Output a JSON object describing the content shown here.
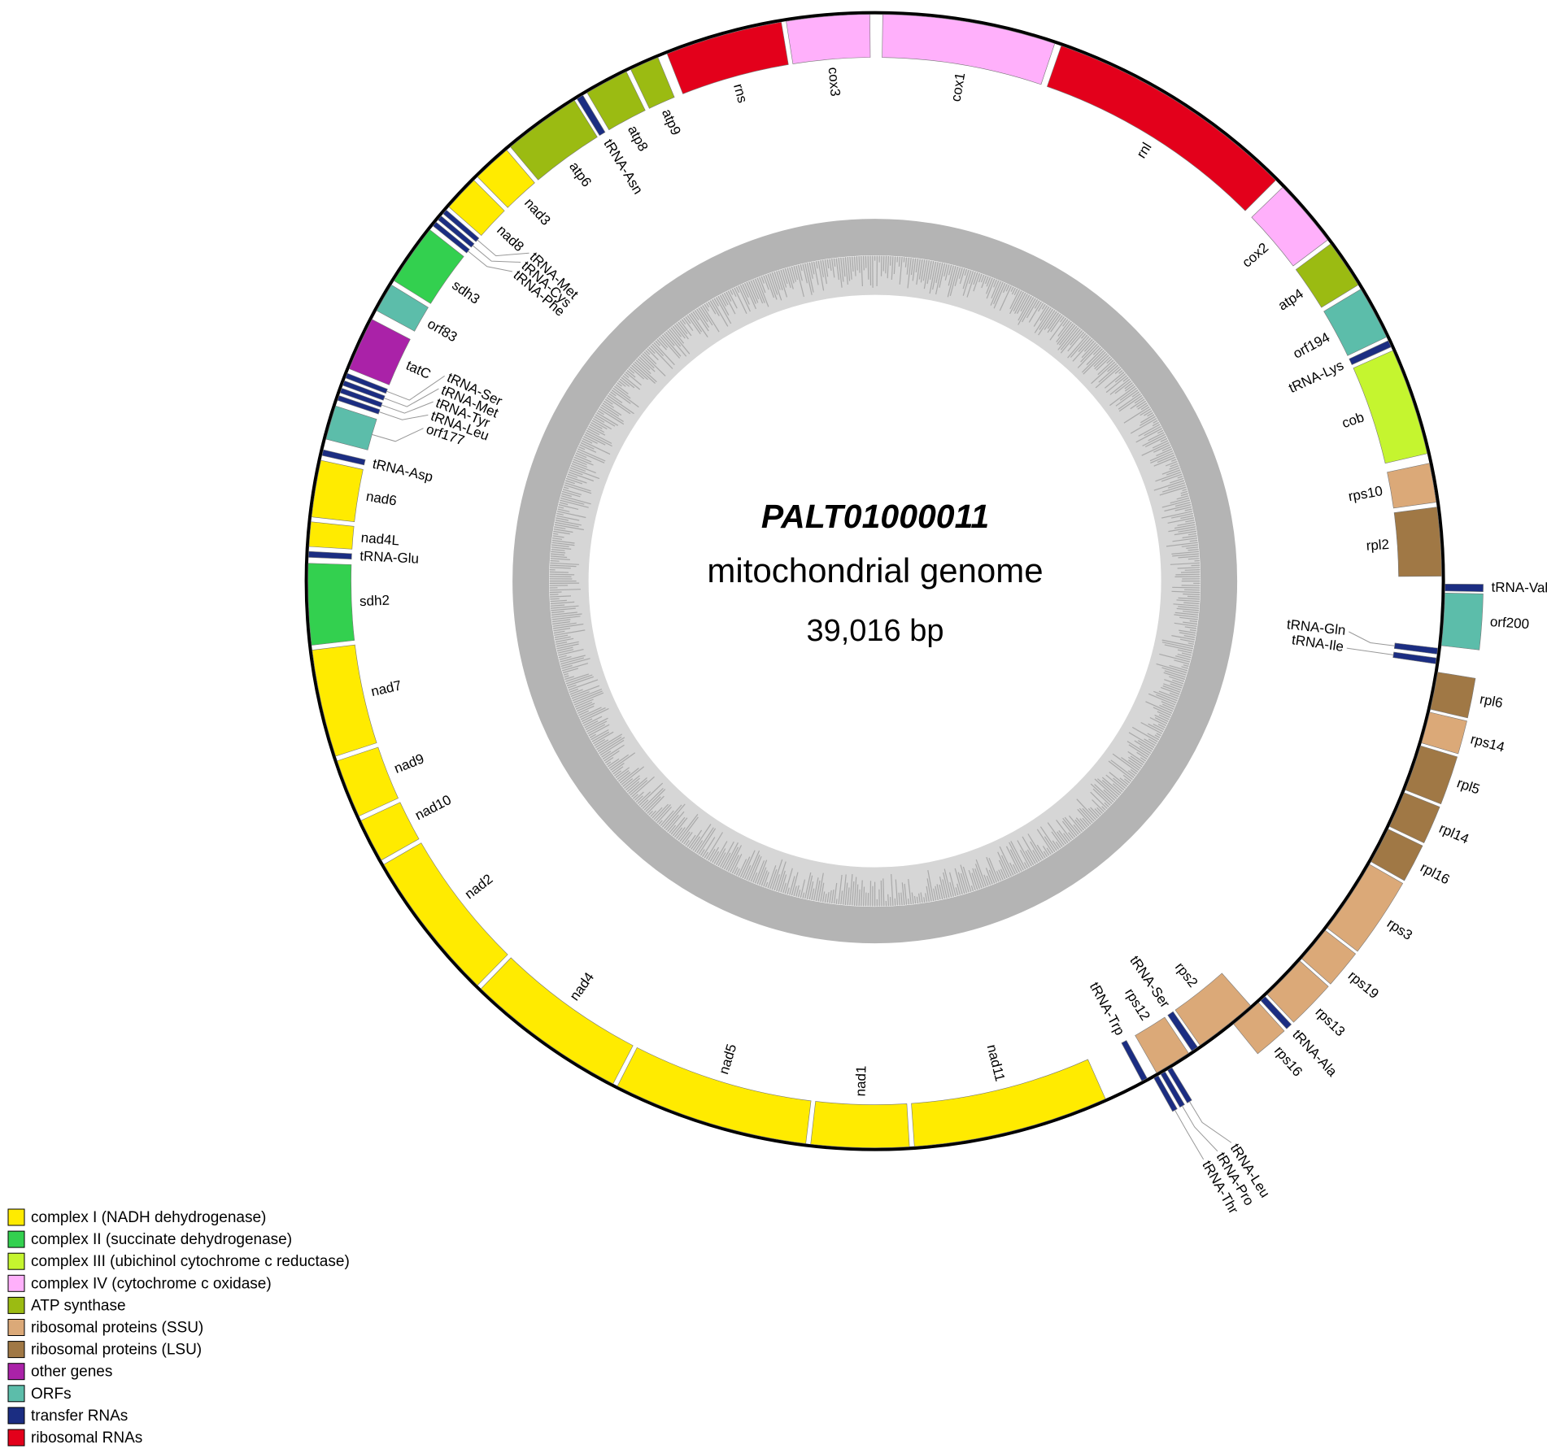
{
  "title": "PALT01000011",
  "subtitle": "mitochondrial genome",
  "length": "39,016 bp",
  "legend": [
    {
      "label": "complex I (NADH dehydrogenase)",
      "color": "#ffeb00"
    },
    {
      "label": "complex II (succinate dehydrogenase)",
      "color": "#33d04f"
    },
    {
      "label": "complex III (ubichinol cytochrome c reductase)",
      "color": "#c5f52f"
    },
    {
      "label": "complex IV (cytochrome c oxidase)",
      "color": "#ffb0fb"
    },
    {
      "label": "ATP synthase",
      "color": "#9bbb12"
    },
    {
      "label": "ribosomal proteins (SSU)",
      "color": "#dba978"
    },
    {
      "label": "ribosomal proteins (LSU)",
      "color": "#a07845"
    },
    {
      "label": "other genes",
      "color": "#aa22a8"
    },
    {
      "label": "ORFs",
      "color": "#5cbdaa"
    },
    {
      "label": "transfer RNAs",
      "color": "#1b2d82"
    },
    {
      "label": "ribosomal RNAs",
      "color": "#e3001b"
    }
  ],
  "genes": [
    {
      "label": "cox1",
      "color": "#ffb0fb"
    },
    {
      "label": "rnl",
      "color": "#e3001b"
    },
    {
      "label": "cox2",
      "color": "#ffb0fb"
    },
    {
      "label": "atp4",
      "color": "#9bbb12"
    },
    {
      "label": "orf194",
      "color": "#5cbdaa"
    },
    {
      "label": "tRNA-Lys",
      "color": "#1b2d82"
    },
    {
      "label": "cob",
      "color": "#c5f52f"
    },
    {
      "label": "rps10",
      "color": "#dba978"
    },
    {
      "label": "rpl2",
      "color": "#a07845"
    },
    {
      "label": "tRNA-Val",
      "color": "#1b2d82"
    },
    {
      "label": "orf200",
      "color": "#5cbdaa"
    },
    {
      "label": "tRNA-Gln",
      "color": "#1b2d82"
    },
    {
      "label": "tRNA-Ile",
      "color": "#1b2d82"
    },
    {
      "label": "rpl6",
      "color": "#a07845"
    },
    {
      "label": "rps14",
      "color": "#dba978"
    },
    {
      "label": "rpl5",
      "color": "#a07845"
    },
    {
      "label": "rpl14",
      "color": "#a07845"
    },
    {
      "label": "rpl16",
      "color": "#a07845"
    },
    {
      "label": "rps3",
      "color": "#dba978"
    },
    {
      "label": "rps19",
      "color": "#dba978"
    },
    {
      "label": "rps13",
      "color": "#dba978"
    },
    {
      "label": "tRNA-Ala",
      "color": "#1b2d82"
    },
    {
      "label": "rps16",
      "color": "#dba978"
    },
    {
      "label": "rps2",
      "color": "#dba978"
    },
    {
      "label": "tRNA-Ser",
      "color": "#1b2d82"
    },
    {
      "label": "rps12",
      "color": "#dba978"
    },
    {
      "label": "tRNA-Leu",
      "color": "#1b2d82"
    },
    {
      "label": "tRNA-Pro",
      "color": "#1b2d82"
    },
    {
      "label": "tRNA-Thr",
      "color": "#1b2d82"
    },
    {
      "label": "tRNA-Trp",
      "color": "#1b2d82"
    },
    {
      "label": "nad11",
      "color": "#ffeb00"
    },
    {
      "label": "nad1",
      "color": "#ffeb00"
    },
    {
      "label": "nad5",
      "color": "#ffeb00"
    },
    {
      "label": "nad4",
      "color": "#ffeb00"
    },
    {
      "label": "nad2",
      "color": "#ffeb00"
    },
    {
      "label": "nad10",
      "color": "#ffeb00"
    },
    {
      "label": "nad9",
      "color": "#ffeb00"
    },
    {
      "label": "nad7",
      "color": "#ffeb00"
    },
    {
      "label": "sdh2",
      "color": "#33d04f"
    },
    {
      "label": "tRNA-Glu",
      "color": "#1b2d82"
    },
    {
      "label": "nad4L",
      "color": "#ffeb00"
    },
    {
      "label": "nad6",
      "color": "#ffeb00"
    },
    {
      "label": "tRNA-Asp",
      "color": "#1b2d82"
    },
    {
      "label": "orf177",
      "color": "#5cbdaa"
    },
    {
      "label": "tRNA-Leu",
      "color": "#1b2d82"
    },
    {
      "label": "tRNA-Tyr",
      "color": "#1b2d82"
    },
    {
      "label": "tRNA-Met",
      "color": "#1b2d82"
    },
    {
      "label": "tRNA-Ser",
      "color": "#1b2d82"
    },
    {
      "label": "tatC",
      "color": "#aa22a8"
    },
    {
      "label": "orf83",
      "color": "#5cbdaa"
    },
    {
      "label": "sdh3",
      "color": "#33d04f"
    },
    {
      "label": "tRNA-Phe",
      "color": "#1b2d82"
    },
    {
      "label": "tRNA-Cys",
      "color": "#1b2d82"
    },
    {
      "label": "tRNA-Met",
      "color": "#1b2d82"
    },
    {
      "label": "nad8",
      "color": "#ffeb00"
    },
    {
      "label": "nad3",
      "color": "#ffeb00"
    },
    {
      "label": "atp6",
      "color": "#9bbb12"
    },
    {
      "label": "tRNA-Asn",
      "color": "#1b2d82"
    },
    {
      "label": "atp8",
      "color": "#9bbb12"
    },
    {
      "label": "atp9",
      "color": "#9bbb12"
    },
    {
      "label": "rns",
      "color": "#e3001b"
    },
    {
      "label": "cox3",
      "color": "#ffb0fb"
    }
  ]
}
